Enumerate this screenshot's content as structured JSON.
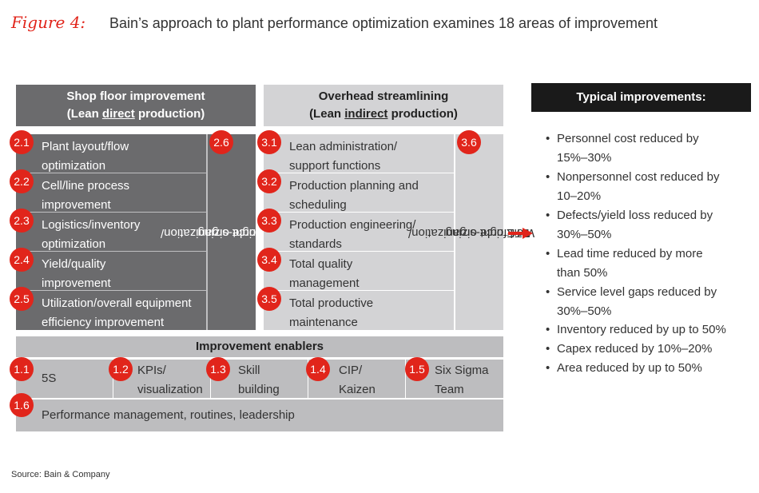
{
  "figure_label": "Figure 4:",
  "title": "Bain’s approach to plant performance optimization examines 18 areas of improvement",
  "shop_floor": {
    "header_line1": "Shop floor improvement",
    "header_line2_pre": "(Lean ",
    "header_line2_u": "direct",
    "header_line2_post": " production)",
    "items": [
      {
        "badge": "2.1",
        "line1": "Plant  layout/flow",
        "line2": "optimization"
      },
      {
        "badge": "2.2",
        "line1": "Cell/line process",
        "line2": "improvement"
      },
      {
        "badge": "2.3",
        "line1": "Logistics/inventory",
        "line2": "optimization"
      },
      {
        "badge": "2.4",
        "line1": "Yield/quality",
        "line2": "improvement"
      },
      {
        "badge": "2.5",
        "line1": "Utilization/overall equipment",
        "line2": "efficiency improvement"
      }
    ],
    "side_badge": "2.6",
    "side_line1": "Workforce organization/",
    "side_line2": "FTE right-sizing"
  },
  "overhead": {
    "header_line1": "Overhead streamlining",
    "header_line2_pre": "(Lean ",
    "header_line2_u": "indirect",
    "header_line2_post": " production)",
    "items": [
      {
        "badge": "3.1",
        "line1": "Lean administration/",
        "line2": "support functions"
      },
      {
        "badge": "3.2",
        "line1": "Production planning and",
        "line2": "scheduling"
      },
      {
        "badge": "3.3",
        "line1": "Production engineering/",
        "line2": "standards"
      },
      {
        "badge": "3.4",
        "line1": "Total quality",
        "line2": "management"
      },
      {
        "badge": "3.5",
        "line1": "Total productive",
        "line2": "maintenance"
      }
    ],
    "side_badge": "3.6",
    "side_line1": "Workforce organization/",
    "side_line2": "FTE right-sizing"
  },
  "enablers": {
    "header": "Improvement enablers",
    "items": [
      {
        "badge": "1.1",
        "line1": "5S",
        "line2": ""
      },
      {
        "badge": "1.2",
        "line1": "KPIs/",
        "line2": "visualization"
      },
      {
        "badge": "1.3",
        "line1": "Skill",
        "line2": "building"
      },
      {
        "badge": "1.4",
        "line1": "CIP/",
        "line2": "Kaizen"
      },
      {
        "badge": "1.5",
        "line1": "Six Sigma",
        "line2": "Team"
      }
    ],
    "bottom_badge": "1.6",
    "bottom_text": "Performance management, routines, leadership"
  },
  "typical": {
    "header": "Typical improvements:",
    "bullet_glyph": "•",
    "items": [
      {
        "line1": "Personnel cost reduced by",
        "line2": "15%–30%"
      },
      {
        "line1": "Nonpersonnel cost reduced by",
        "line2": "10–20%"
      },
      {
        "line1": "Defects/yield loss reduced by",
        "line2": "30%–50%"
      },
      {
        "line1": "Lead time reduced by more",
        "line2": "than 50%"
      },
      {
        "line1": "Service level gaps reduced by",
        "line2": "30%–50%"
      },
      {
        "line1": "Inventory reduced by up to 50%",
        "line2": ""
      },
      {
        "line1": "Capex reduced by 10%–20%",
        "line2": ""
      },
      {
        "line1": "Area reduced by up to 50%",
        "line2": ""
      }
    ]
  },
  "source": "Source: Bain & Company",
  "colors": {
    "accent": "#e1251b",
    "dark_gray": "#6b6b6d",
    "light_gray": "#d3d3d5",
    "black_header": "#1a1a1a"
  },
  "icons": {
    "arrow": "right-arrow-icon"
  }
}
